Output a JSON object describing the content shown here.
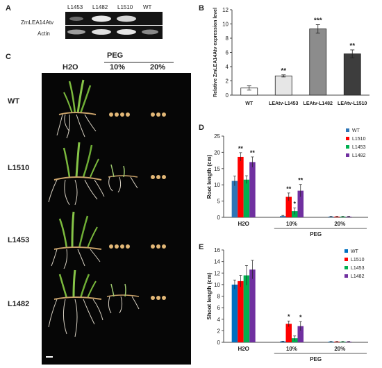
{
  "panels": {
    "a": "A",
    "b": "B",
    "c": "C",
    "d": "D",
    "e": "E"
  },
  "panel_a": {
    "lanes": [
      "L1453",
      "L1482",
      "L1510",
      "WT"
    ],
    "rows": [
      "ZmLEA14Atv",
      "Actin"
    ]
  },
  "panel_c": {
    "group_header": "PEG",
    "columns": [
      "H2O",
      "10%",
      "20%"
    ],
    "rows": [
      "WT",
      "L1510",
      "L1453",
      "L1482"
    ]
  },
  "chart_data": [
    {
      "panel": "B",
      "type": "bar",
      "ylabel": "Relative ZmLEA14Atv expression level",
      "categories": [
        "WT",
        "LEAtv-L1453",
        "LEAtv-L1482",
        "LEAtv-L1510"
      ],
      "values": [
        1.0,
        2.7,
        9.3,
        5.8
      ],
      "errors": [
        0.3,
        0.15,
        0.6,
        0.55
      ],
      "significance": [
        "",
        "**",
        "***",
        "**"
      ],
      "ylim": [
        0,
        12
      ],
      "yticks": [
        0,
        2,
        4,
        6,
        8,
        10,
        12
      ],
      "colors": [
        "#ffffff",
        "#e6e6e6",
        "#8c8c8c",
        "#3d3d3d"
      ]
    },
    {
      "panel": "D",
      "type": "bar",
      "ylabel": "Root length (cm)",
      "categories": [
        "H2O",
        "10%",
        "20%"
      ],
      "group_label": "PEG",
      "series": [
        {
          "name": "WT",
          "values": [
            11.2,
            0.4,
            0.2
          ],
          "errors": [
            1.5,
            0.2,
            0.1
          ],
          "significance": [
            "",
            "",
            ""
          ],
          "color": "#2e75b6"
        },
        {
          "name": "L1510",
          "values": [
            18.6,
            6.3,
            0.2
          ],
          "errors": [
            1.3,
            1.2,
            0.1
          ],
          "significance": [
            "**",
            "**",
            ""
          ],
          "color": "#ff0000"
        },
        {
          "name": "L1453",
          "values": [
            11.6,
            1.9,
            0.2
          ],
          "errors": [
            1.2,
            1.0,
            0.1
          ],
          "significance": [
            "",
            "*",
            ""
          ],
          "color": "#00b050"
        },
        {
          "name": "L1482",
          "values": [
            17.0,
            8.2,
            0.2
          ],
          "errors": [
            1.6,
            1.9,
            0.1
          ],
          "significance": [
            "**",
            "**",
            ""
          ],
          "color": "#7030a0"
        }
      ],
      "ylim": [
        0,
        25
      ],
      "yticks": [
        0,
        5,
        10,
        15,
        20,
        25
      ],
      "legend": "top-right"
    },
    {
      "panel": "E",
      "type": "bar",
      "ylabel": "Shoot length (cm)",
      "categories": [
        "H2O",
        "10%",
        "20%"
      ],
      "group_label": "PEG",
      "series": [
        {
          "name": "WT",
          "values": [
            10.0,
            0.15,
            0.1
          ],
          "errors": [
            0.8,
            0.05,
            0.05
          ],
          "significance": [
            "",
            "",
            ""
          ],
          "color": "#0070c0"
        },
        {
          "name": "L1510",
          "values": [
            10.6,
            3.2,
            0.1
          ],
          "errors": [
            1.0,
            0.5,
            0.05
          ],
          "significance": [
            "",
            "*",
            ""
          ],
          "color": "#ff0000"
        },
        {
          "name": "L1453",
          "values": [
            11.6,
            0.7,
            0.1
          ],
          "errors": [
            1.7,
            0.4,
            0.05
          ],
          "significance": [
            "",
            "",
            ""
          ],
          "color": "#00b050"
        },
        {
          "name": "L1482",
          "values": [
            12.6,
            2.8,
            0.1
          ],
          "errors": [
            1.6,
            0.8,
            0.05
          ],
          "significance": [
            "",
            "*",
            ""
          ],
          "color": "#7030a0"
        }
      ],
      "ylim": [
        0,
        16
      ],
      "yticks": [
        0,
        2,
        4,
        6,
        8,
        10,
        12,
        14,
        16
      ],
      "legend": "top-right"
    }
  ]
}
